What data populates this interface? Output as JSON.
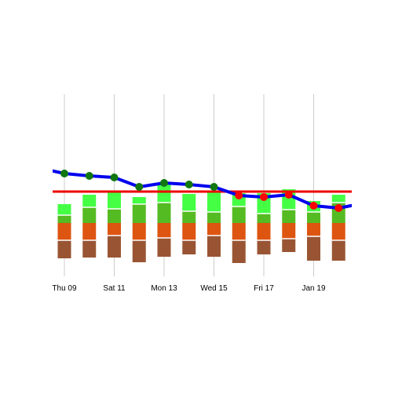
{
  "chart_data": {
    "type": "bar",
    "categories": [
      "2016-01-08",
      "2016-01-09",
      "2016-01-10",
      "2016-01-11",
      "2016-01-12",
      "2016-01-13",
      "2016-01-14",
      "2016-01-15",
      "2016-01-16",
      "2016-01-17",
      "2016-01-18",
      "2016-01-19",
      "2016-01-20"
    ],
    "tick_labels": [
      {
        "date": "2016-01-09",
        "label": "Thu 09"
      },
      {
        "date": "2016-01-11",
        "label": "Sat 11"
      },
      {
        "date": "2016-01-13",
        "label": "Mon 13"
      },
      {
        "date": "2016-01-15",
        "label": "Wed 15"
      },
      {
        "date": "2016-01-17",
        "label": "Fri 17"
      },
      {
        "date": "2016-01-19",
        "label": "Jan 19"
      }
    ],
    "bar_stacks": {
      "up": [
        {
          "name": "",
          "color": "#55bb22",
          "values": [
            10,
            20,
            18,
            24,
            26,
            15,
            14,
            21,
            12,
            17,
            14,
            26
          ]
        },
        {
          "name": "",
          "color": "#44ff44",
          "values": [
            14,
            16,
            23,
            9,
            24,
            22,
            25,
            17,
            26,
            26,
            14,
            10
          ]
        }
      ],
      "down": [
        {
          "name": "",
          "color": "#dd5511",
          "values": [
            22,
            22,
            16,
            22,
            19,
            22,
            16,
            22,
            22,
            20,
            17,
            22
          ]
        },
        {
          "name": "",
          "color": "#995533",
          "values": [
            23,
            22,
            28,
            28,
            24,
            18,
            27,
            29,
            18,
            17,
            31,
            26
          ]
        }
      ]
    },
    "line_series": {
      "name": "",
      "color": "#0000ee",
      "values": [
        70,
        63,
        60,
        58,
        46,
        51,
        49,
        46,
        35,
        33,
        36,
        22,
        19,
        25
      ],
      "x_start": "2016-01-08",
      "marker_colors": [
        "",
        "#117711",
        "#117711",
        "#117711",
        "#117711",
        "#117711",
        "#117711",
        "#117711",
        "#ff0000",
        "#ff0000",
        "#ff0000",
        "#ff0000",
        "#ff0000",
        ""
      ]
    },
    "reference_line": {
      "value": 40,
      "color": "#ee0000"
    },
    "ylim": [
      -80,
      100
    ],
    "grid": {
      "vertical": true,
      "horizontal": false
    },
    "title": "",
    "xlabel": "",
    "ylabel": ""
  }
}
